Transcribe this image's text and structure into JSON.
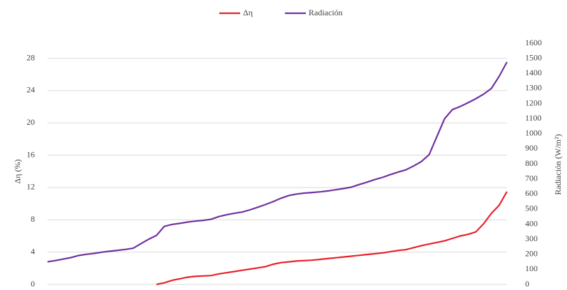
{
  "chart_data": {
    "type": "line",
    "y_label": "Δη (%)",
    "y2_label": "Radiación (W/m²)",
    "ylim": [
      0,
      29.87
    ],
    "yticks": [
      0,
      4,
      8,
      12,
      16,
      20,
      24,
      28
    ],
    "y2lim": [
      0,
      1600
    ],
    "y2ticks": [
      0,
      100,
      200,
      300,
      400,
      500,
      600,
      700,
      800,
      900,
      1000,
      1100,
      1200,
      1300,
      1400,
      1500,
      1600
    ],
    "grid": true,
    "legend": "top",
    "series": [
      {
        "name": "Δη",
        "color": "#e8202a",
        "values": [
          null,
          null,
          null,
          null,
          null,
          null,
          null,
          null,
          null,
          null,
          null,
          null,
          null,
          null,
          0,
          0.2,
          0.5,
          0.7,
          0.9,
          1.0,
          1.05,
          1.1,
          1.3,
          1.45,
          1.6,
          1.75,
          1.9,
          2.05,
          2.2,
          2.5,
          2.7,
          2.8,
          2.9,
          2.95,
          3.0,
          3.1,
          3.2,
          3.3,
          3.4,
          3.5,
          3.6,
          3.7,
          3.8,
          3.9,
          4.05,
          4.2,
          4.3,
          4.55,
          4.8,
          5.0,
          5.2,
          5.4,
          5.7,
          6.0,
          6.2,
          6.5,
          7.5,
          8.8,
          9.8,
          11.5
        ]
      },
      {
        "name": "Radiación",
        "color": "#7030a0",
        "axis": "y2",
        "values": [
          150,
          158,
          168,
          178,
          192,
          200,
          206,
          214,
          220,
          226,
          232,
          240,
          270,
          300,
          325,
          385,
          398,
          405,
          414,
          420,
          425,
          432,
          450,
          462,
          472,
          480,
          495,
          512,
          530,
          550,
          572,
          590,
          600,
          606,
          610,
          614,
          620,
          628,
          636,
          645,
          662,
          678,
          695,
          710,
          728,
          745,
          760,
          785,
          815,
          860,
          980,
          1100,
          1160,
          1180,
          1205,
          1232,
          1262,
          1300,
          1380,
          1475
        ]
      }
    ]
  }
}
